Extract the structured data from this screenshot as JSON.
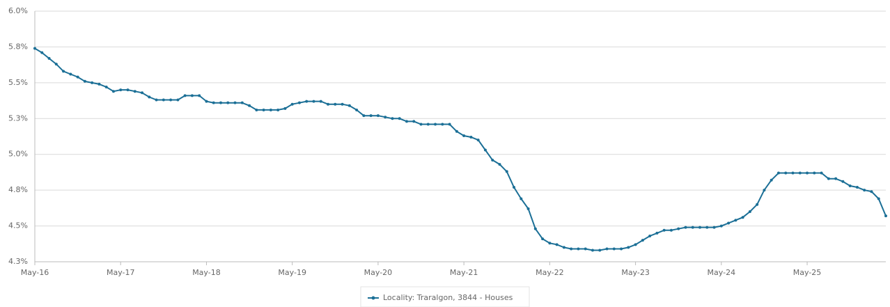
{
  "chart_data": {
    "type": "line",
    "categories": [
      "May-16",
      null,
      null,
      null,
      null,
      null,
      null,
      null,
      null,
      null,
      null,
      null,
      "May-17",
      null,
      null,
      null,
      null,
      null,
      null,
      null,
      null,
      null,
      null,
      null,
      "May-18",
      null,
      null,
      null,
      null,
      null,
      null,
      null,
      null,
      null,
      null,
      null,
      "May-19",
      null,
      null,
      null,
      null,
      null,
      null,
      null,
      null,
      null,
      null,
      null,
      "May-20",
      null,
      null,
      null,
      null,
      null,
      null,
      null,
      null,
      null,
      null,
      null,
      "May-21",
      null,
      null,
      null,
      null,
      null,
      null,
      null,
      null,
      null,
      null,
      null,
      "May-22",
      null,
      null,
      null,
      null,
      null,
      null,
      null,
      null,
      null,
      null,
      null,
      "May-23",
      null,
      null,
      null,
      null,
      null,
      null,
      null,
      null,
      null,
      null,
      null,
      "May-24",
      null,
      null,
      null,
      null,
      null,
      null,
      null,
      null,
      null,
      null,
      null,
      "May-25",
      null,
      null,
      null,
      null,
      null,
      null,
      null,
      null,
      null,
      null,
      null
    ],
    "series": [
      {
        "name": "Locality: Traralgon, 3844 - Houses",
        "color": "#1b6f96",
        "values": [
          5.74,
          5.71,
          5.67,
          5.63,
          5.58,
          5.56,
          5.54,
          5.51,
          5.5,
          5.49,
          5.47,
          5.44,
          5.45,
          5.45,
          5.44,
          5.43,
          5.4,
          5.38,
          5.38,
          5.38,
          5.38,
          5.41,
          5.41,
          5.41,
          5.37,
          5.36,
          5.36,
          5.36,
          5.36,
          5.36,
          5.34,
          5.31,
          5.31,
          5.31,
          5.31,
          5.32,
          5.35,
          5.36,
          5.37,
          5.37,
          5.37,
          5.35,
          5.35,
          5.35,
          5.34,
          5.31,
          5.27,
          5.27,
          5.27,
          5.26,
          5.25,
          5.25,
          5.23,
          5.23,
          5.21,
          5.21,
          5.21,
          5.21,
          5.21,
          5.16,
          5.13,
          5.12,
          5.1,
          5.03,
          4.96,
          4.93,
          4.88,
          4.77,
          4.69,
          4.62,
          4.48,
          4.41,
          4.38,
          4.37,
          4.35,
          4.34,
          4.34,
          4.34,
          4.33,
          4.33,
          4.34,
          4.34,
          4.34,
          4.35,
          4.37,
          4.4,
          4.43,
          4.45,
          4.47,
          4.47,
          4.48,
          4.49,
          4.49,
          4.49,
          4.49,
          4.49,
          4.5,
          4.52,
          4.54,
          4.56,
          4.6,
          4.65,
          4.75,
          4.82,
          4.87,
          4.87,
          4.87,
          4.87,
          4.87,
          4.87,
          4.87,
          4.83,
          4.83,
          4.81,
          4.78,
          4.77,
          4.75,
          4.74,
          4.69,
          4.57
        ]
      }
    ],
    "ylim": [
      4.25,
      6.0
    ],
    "yticks": [
      {
        "value": 4.25,
        "label": "4.3%"
      },
      {
        "value": 4.5,
        "label": "4.5%"
      },
      {
        "value": 4.75,
        "label": "4.8%"
      },
      {
        "value": 5.0,
        "label": "5.0%"
      },
      {
        "value": 5.25,
        "label": "5.3%"
      },
      {
        "value": 5.5,
        "label": "5.5%"
      },
      {
        "value": 5.75,
        "label": "5.8%"
      },
      {
        "value": 6.0,
        "label": "6.0%"
      }
    ],
    "grid": true,
    "legend": "bottom"
  }
}
